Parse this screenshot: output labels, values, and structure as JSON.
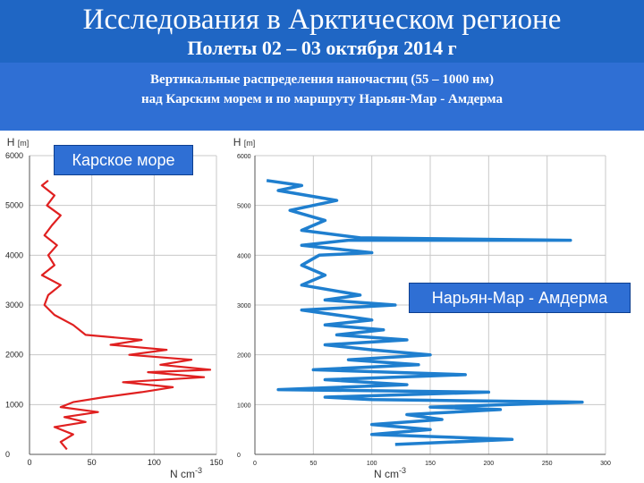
{
  "header": {
    "title": "Исследования в Арктическом регионе",
    "subtitle": "Полеты 02 – 03 октября 2014 г"
  },
  "banner": {
    "line1": "Вертикальные распределения наночастиц (55 – 1000 нм)",
    "line2": "над  Карским морем и по маршруту Нарьян-Мар - Амдерма"
  },
  "colors": {
    "header_bg": "#1f66c4",
    "red_series": "#e02020",
    "blue_series": "#1f7fcf"
  },
  "chart_data": [
    {
      "type": "line",
      "label": "Карское море",
      "ylabel": "H [m]",
      "xlabel": "N cm-3",
      "ylabel_parts": {
        "main": "H",
        "unit": "[m]"
      },
      "xlabel_parts": {
        "main": "N cm",
        "sup": "-3"
      },
      "xlim": [
        0,
        150
      ],
      "ylim": [
        0,
        6000
      ],
      "xticks": [
        "0",
        "50",
        "100",
        "150"
      ],
      "yticks": [
        "0",
        "1000",
        "2000",
        "3000",
        "4000",
        "5000",
        "6000"
      ],
      "series": [
        {
          "points": [
            [
              30,
              100
            ],
            [
              25,
              250
            ],
            [
              35,
              400
            ],
            [
              20,
              550
            ],
            [
              45,
              650
            ],
            [
              28,
              750
            ],
            [
              55,
              850
            ],
            [
              25,
              950
            ],
            [
              35,
              1050
            ],
            [
              60,
              1150
            ],
            [
              90,
              1250
            ],
            [
              115,
              1350
            ],
            [
              75,
              1450
            ],
            [
              140,
              1550
            ],
            [
              95,
              1650
            ],
            [
              145,
              1700
            ],
            [
              105,
              1800
            ],
            [
              130,
              1900
            ],
            [
              80,
              2000
            ],
            [
              110,
              2100
            ],
            [
              65,
              2200
            ],
            [
              90,
              2300
            ],
            [
              45,
              2400
            ],
            [
              35,
              2600
            ],
            [
              20,
              2800
            ],
            [
              12,
              3000
            ],
            [
              15,
              3200
            ],
            [
              25,
              3400
            ],
            [
              10,
              3600
            ],
            [
              20,
              3800
            ],
            [
              15,
              4000
            ],
            [
              22,
              4200
            ],
            [
              12,
              4400
            ],
            [
              18,
              4600
            ],
            [
              25,
              4800
            ],
            [
              14,
              5000
            ],
            [
              20,
              5200
            ],
            [
              10,
              5400
            ],
            [
              15,
              5500
            ]
          ]
        }
      ]
    },
    {
      "type": "line",
      "label": "Нарьян-Мар - Амдерма",
      "ylabel": "H [m]",
      "xlabel": "N cm-3",
      "ylabel_parts": {
        "main": "H",
        "unit": "[m]"
      },
      "xlabel_parts": {
        "main": "N cm",
        "sup": "-3"
      },
      "xlim": [
        0,
        300
      ],
      "ylim": [
        0,
        6000
      ],
      "xticks": [
        "0",
        "50",
        "100",
        "150",
        "200",
        "250",
        "300"
      ],
      "yticks": [
        "0",
        "1000",
        "2000",
        "3000",
        "4000",
        "5000",
        "6000"
      ],
      "series": [
        {
          "points": [
            [
              120,
              200
            ],
            [
              220,
              300
            ],
            [
              100,
              400
            ],
            [
              150,
              500
            ],
            [
              100,
              600
            ],
            [
              160,
              700
            ],
            [
              130,
              800
            ],
            [
              210,
              900
            ],
            [
              150,
              950
            ],
            [
              280,
              1050
            ],
            [
              100,
              1100
            ],
            [
              60,
              1150
            ],
            [
              200,
              1250
            ],
            [
              20,
              1300
            ],
            [
              130,
              1400
            ],
            [
              60,
              1500
            ],
            [
              180,
              1600
            ],
            [
              50,
              1700
            ],
            [
              140,
              1800
            ],
            [
              80,
              1900
            ],
            [
              150,
              2000
            ],
            [
              100,
              2100
            ],
            [
              60,
              2200
            ],
            [
              130,
              2300
            ],
            [
              70,
              2400
            ],
            [
              110,
              2500
            ],
            [
              60,
              2600
            ],
            [
              100,
              2700
            ],
            [
              40,
              2900
            ],
            [
              120,
              3000
            ],
            [
              60,
              3100
            ],
            [
              90,
              3200
            ],
            [
              40,
              3400
            ],
            [
              60,
              3600
            ],
            [
              40,
              3800
            ],
            [
              55,
              4000
            ],
            [
              100,
              4050
            ],
            [
              40,
              4200
            ],
            [
              80,
              4300
            ],
            [
              270,
              4300
            ],
            [
              90,
              4350
            ],
            [
              40,
              4500
            ],
            [
              60,
              4700
            ],
            [
              30,
              4900
            ],
            [
              70,
              5100
            ],
            [
              20,
              5300
            ],
            [
              40,
              5400
            ],
            [
              10,
              5500
            ]
          ]
        }
      ]
    }
  ]
}
